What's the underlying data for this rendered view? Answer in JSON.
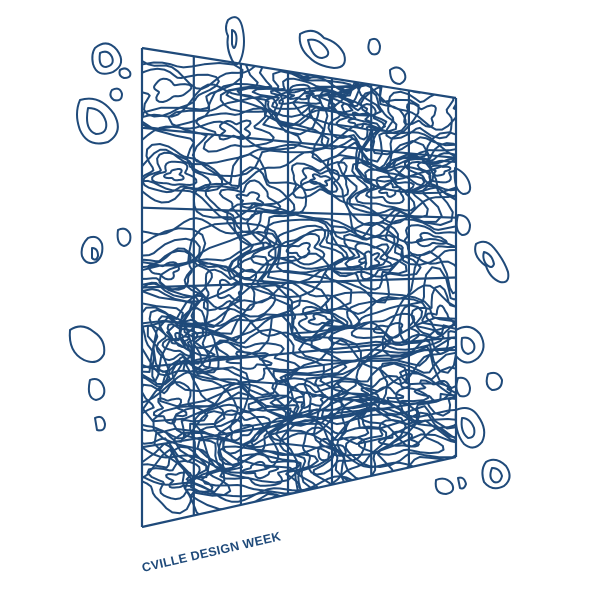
{
  "brand": {
    "text": "CVILLE DESIGN WEEK",
    "ink_color": "#1f4a7a"
  },
  "artwork": {
    "motif": "topographic-contour-lines",
    "grid_columns": 7,
    "grid_rows": 6
  }
}
